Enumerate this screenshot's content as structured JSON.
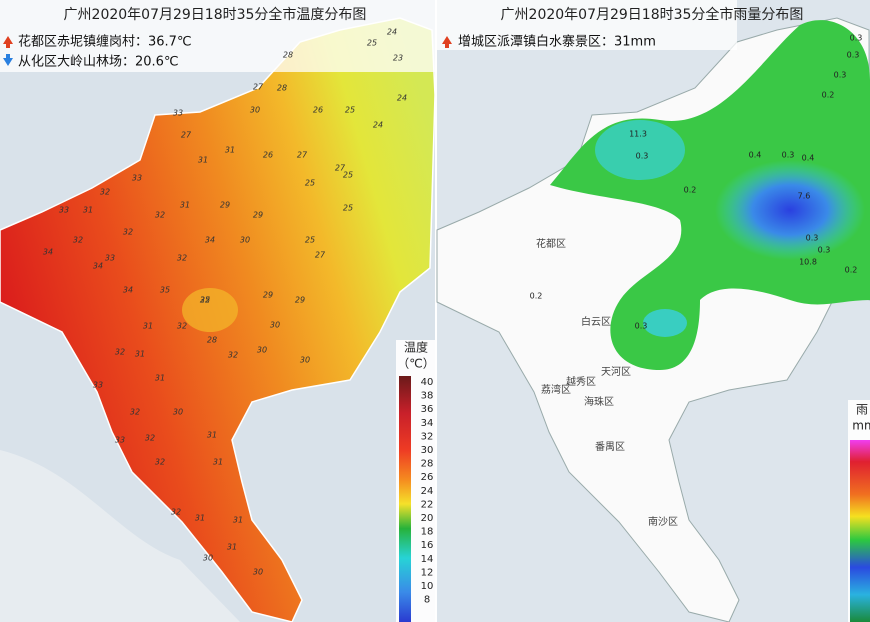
{
  "left_map": {
    "title": "广州2020年07月29日18时35分全市温度分布图",
    "max_note": "花都区赤坭镇缠岗村：36.7℃",
    "min_note": "从化区大岭山林场：20.6℃",
    "legend": {
      "title": "温度",
      "unit": "（℃）",
      "ticks": [
        40,
        38,
        36,
        34,
        32,
        30,
        28,
        26,
        24,
        22,
        20,
        18,
        16,
        14,
        12,
        10,
        8
      ]
    },
    "station_values": [
      33,
      27,
      27,
      31,
      33,
      32,
      31,
      26,
      27,
      32,
      28,
      33,
      32,
      33,
      31,
      29,
      25,
      27,
      31,
      34,
      32,
      34,
      29,
      30,
      26,
      25,
      34,
      35,
      32,
      34,
      30,
      25,
      25,
      31,
      32,
      32,
      28,
      29,
      27,
      32,
      31,
      30,
      30,
      25,
      32,
      31,
      33,
      32,
      30,
      29,
      33,
      32,
      31,
      30,
      32,
      31,
      31,
      31,
      32,
      30,
      31,
      30,
      28,
      25,
      24,
      25,
      23,
      24,
      24
    ]
  },
  "right_map": {
    "title": "广州2020年07月29日18时35分全市雨量分布图",
    "max_note": "增城区派潭镇白水寨景区：31mm",
    "districts": [
      "花都区",
      "白云区",
      "天河区",
      "越秀区",
      "海珠区",
      "荔湾区",
      "番禺区",
      "南沙区"
    ],
    "legend": {
      "title": "雨",
      "unit": "mm"
    },
    "station_values": [
      0.2,
      0.3,
      0.4,
      0.2,
      11.3,
      0.3,
      0.4,
      0.3,
      7.6,
      0.3,
      0.3,
      0.2,
      0.3,
      10.8,
      0.3,
      0.2,
      0.3
    ]
  }
}
